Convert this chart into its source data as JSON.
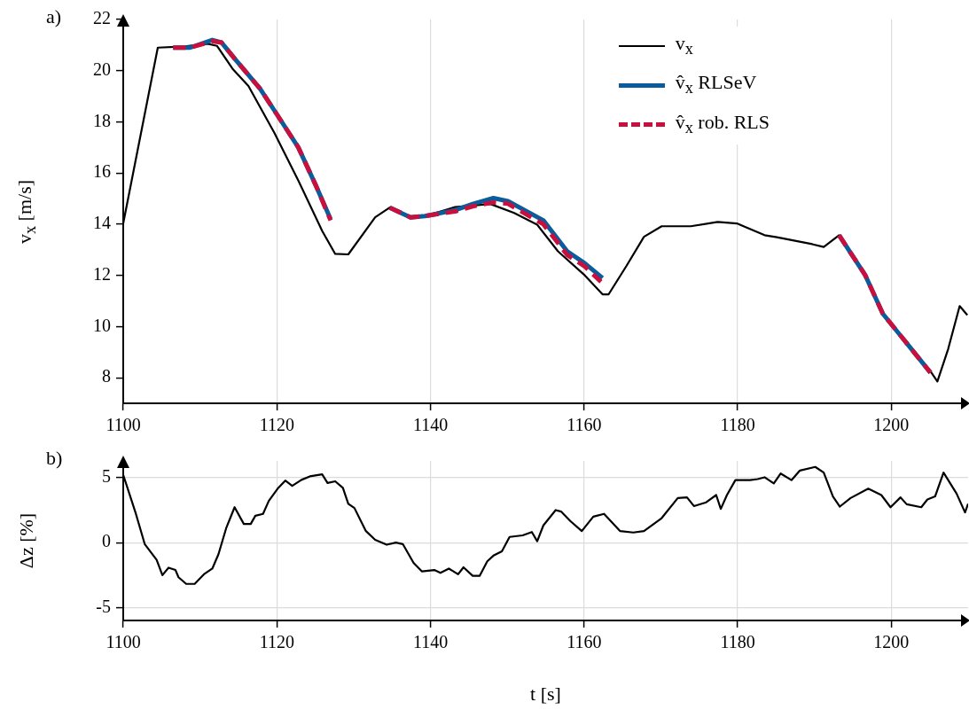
{
  "chart_data": [
    {
      "type": "line",
      "title": "a)",
      "ylabel": "v$_{x}$ [m/s]",
      "xlim": [
        1100,
        1210
      ],
      "xticks": [
        1100,
        1120,
        1140,
        1160,
        1180,
        1200
      ],
      "ylim": [
        7,
        22
      ],
      "yticks": [
        8,
        10,
        12,
        14,
        16,
        18,
        20,
        22
      ],
      "grid": "x",
      "legend": "top right",
      "marker": "none",
      "series": [
        {
          "name": "v$_{x}$",
          "color": "#000000",
          "line_style": "solid",
          "x": [
            1100,
            1104.5,
            1108,
            1111,
            1112.2,
            1114.3,
            1116.3,
            1119.7,
            1122.8,
            1125.9,
            1127.6,
            1129.3,
            1132.8,
            1134.7,
            1137.4,
            1139.3,
            1143.2,
            1147.8,
            1150.9,
            1153.9,
            1156.6,
            1160.1,
            1162.4,
            1163.2,
            1165.5,
            1167.8,
            1170.1,
            1173.9,
            1177.4,
            1179.9,
            1183.5,
            1185.1,
            1189.7,
            1191.2,
            1193.2,
            1196.6,
            1198.9,
            1202,
            1205.1,
            1206,
            1207.4,
            1208.9,
            1209.9
          ],
          "values": [
            14.03,
            20.9,
            20.95,
            21.05,
            20.97,
            20.05,
            19.4,
            17.56,
            15.7,
            13.74,
            12.84,
            12.82,
            14.27,
            14.65,
            14.27,
            14.32,
            14.67,
            14.79,
            14.44,
            13.98,
            12.94,
            12,
            11.26,
            11.26,
            12.36,
            13.51,
            13.92,
            13.92,
            14.09,
            14.03,
            13.57,
            13.49,
            13.22,
            13.11,
            13.57,
            12.01,
            10.5,
            9.35,
            8.25,
            7.85,
            9.12,
            10.8,
            10.45
          ]
        },
        {
          "name": "v̂$_{x}$ RLSeV",
          "color": "#0a5c9c",
          "line_style": "solid",
          "x": [
            1106.5,
            1108.7,
            1111.6,
            1112.8,
            1114.7,
            1117.8,
            1120.1,
            1122.8,
            1125.1,
            1127,
            null,
            1134.7,
            1137.4,
            1139.3,
            1143.2,
            1145.5,
            1148.2,
            1150.1,
            1154.7,
            1157.8,
            1160.1,
            1162.4,
            null,
            1193.2,
            1196.6,
            1198.9,
            1202,
            1205.1
          ],
          "values": [
            20.9,
            20.9,
            21.2,
            21.1,
            20.4,
            19.3,
            18.25,
            17,
            15.5,
            14.2,
            null,
            14.65,
            14.27,
            14.32,
            14.55,
            14.79,
            15.02,
            14.9,
            14.15,
            12.94,
            12.47,
            11.9,
            null,
            13.57,
            12.01,
            10.5,
            9.35,
            8.2
          ]
        },
        {
          "name": "v̂$_{x}$ rob. RLS",
          "color": "#c8103e",
          "line_style": "dashed",
          "x": [
            1106.5,
            1108.7,
            1111.6,
            1112.8,
            1114.7,
            1117.8,
            1120.1,
            1122.8,
            1125.1,
            1127,
            null,
            1134.7,
            1137.4,
            1139.3,
            1143.2,
            1145.5,
            1148.2,
            1150.1,
            1154.7,
            1157.8,
            1160.1,
            1162.2,
            null,
            1193.2,
            1196.6,
            1198.9,
            1202,
            1205.1
          ],
          "values": [
            20.9,
            20.9,
            21.15,
            21.1,
            20.4,
            19.3,
            18.25,
            17,
            15.5,
            14.15,
            null,
            14.65,
            14.27,
            14.32,
            14.5,
            14.7,
            14.85,
            14.8,
            14,
            12.8,
            12.35,
            11.75,
            null,
            13.57,
            12.01,
            10.5,
            9.35,
            8.2
          ]
        }
      ]
    },
    {
      "type": "line",
      "title": "b)",
      "ylabel": "Δz [%]",
      "xlabel": "t [s]",
      "xlim": [
        1100,
        1210
      ],
      "xticks": [
        1100,
        1120,
        1140,
        1160,
        1180,
        1200
      ],
      "ylim": [
        -6,
        6.3
      ],
      "yticks": [
        -5,
        0,
        5
      ],
      "grid": true,
      "marker": "none",
      "series": [
        {
          "color": "#000000",
          "x": [
            1100,
            1101.65,
            1102.8,
            1104.35,
            1105.1,
            1105.9,
            1106.8,
            1107.2,
            1108.2,
            1109.3,
            1110.5,
            1111.6,
            1112.4,
            1113.4,
            1114.5,
            1115.7,
            1116.6,
            1117.2,
            1118.2,
            1118.95,
            1120.1,
            1121.1,
            1122,
            1123.2,
            1124.3,
            1125.9,
            1126.6,
            1127.6,
            1128.6,
            1129.3,
            1130.1,
            1131.6,
            1132.8,
            1134.3,
            1135.5,
            1136.4,
            1137.8,
            1138.9,
            1140.5,
            1141.3,
            1142.4,
            1143.6,
            1144.3,
            1145.5,
            1146.4,
            1147.4,
            1148.2,
            1149.3,
            1150.3,
            1152,
            1153.2,
            1153.9,
            1154.7,
            1156.3,
            1157,
            1158.2,
            1159.7,
            1161.2,
            1162.6,
            1164.7,
            1166.4,
            1167.8,
            1170.1,
            1172.2,
            1173.4,
            1174.3,
            1175.9,
            1177.2,
            1177.8,
            1178.6,
            1179.7,
            1181.6,
            1182.6,
            1183.5,
            1184.7,
            1185.6,
            1187,
            1188.1,
            1190.1,
            1191.2,
            1192.4,
            1193.3,
            1194.7,
            1197,
            1198.7,
            1199.9,
            1201.2,
            1202,
            1203.9,
            1204.7,
            1205.7,
            1206.8,
            1208.5,
            1209.6,
            1210
          ],
          "values": [
            5.22,
            2.22,
            -0.11,
            -1.33,
            -2.51,
            -1.93,
            -2.11,
            -2.67,
            -3.18,
            -3.18,
            -2.44,
            -2,
            -0.89,
            1.11,
            2.73,
            1.44,
            1.44,
            2.07,
            2.22,
            3.22,
            4.16,
            4.78,
            4.38,
            4.84,
            5.11,
            5.27,
            4.6,
            4.73,
            4.22,
            3,
            2.67,
            0.89,
            0.22,
            -0.16,
            0,
            -0.11,
            -1.56,
            -2.22,
            -2.11,
            -2.33,
            -2,
            -2.44,
            -1.9,
            -2.56,
            -2.56,
            -1.44,
            -1,
            -0.67,
            0.44,
            0.56,
            0.82,
            0.11,
            1.33,
            2.51,
            2.4,
            1.67,
            0.89,
            2,
            2.22,
            0.89,
            0.78,
            0.89,
            1.89,
            3.44,
            3.49,
            2.82,
            3.11,
            3.67,
            2.6,
            3.67,
            4.82,
            4.82,
            4.9,
            5.04,
            4.56,
            5.33,
            4.82,
            5.56,
            5.84,
            5.4,
            3.56,
            2.78,
            3.44,
            4.16,
            3.67,
            2.73,
            3.49,
            2.96,
            2.73,
            3.33,
            3.56,
            5.4,
            3.78,
            2.33,
            3
          ]
        }
      ]
    }
  ]
}
